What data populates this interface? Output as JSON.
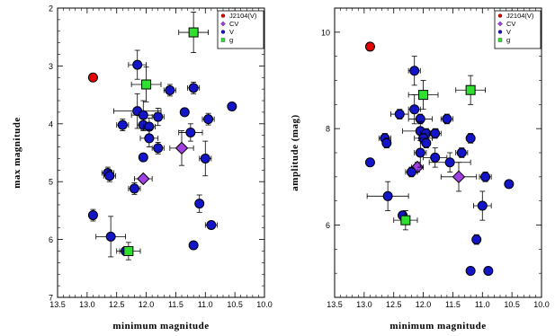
{
  "chart_data": [
    {
      "type": "scatter",
      "xlabel": "minimum magnitude",
      "ylabel": "max magnitude",
      "xlim": [
        13.5,
        10.0
      ],
      "ylim": [
        7,
        2
      ],
      "y_inverted": true,
      "xticks": [
        "13.5",
        "13.0",
        "12.5",
        "12.0",
        "11.5",
        "11.0",
        "10.5",
        "10.0"
      ],
      "yticks": [
        "2",
        "3",
        "4",
        "5",
        "6",
        "7"
      ],
      "legend_position": "top-right",
      "series": [
        {
          "name": "J2104(V)",
          "marker": "circle",
          "color": "#e00000",
          "points": [
            {
              "x": 12.9,
              "y": 3.2
            }
          ]
        },
        {
          "name": "CV",
          "marker": "diamond",
          "color": "#a040e0",
          "points": [
            {
              "x": 12.05,
              "y": 4.95,
              "xerr": 0.15,
              "yerr": 0.0
            },
            {
              "x": 11.4,
              "y": 4.42,
              "xerr": 0.2,
              "yerr": 0.3
            }
          ]
        },
        {
          "name": "V",
          "marker": "circle",
          "color": "#1414c8",
          "points": [
            {
              "x": 12.15,
              "y": 2.98,
              "xerr": 0.15,
              "yerr": 0.25
            },
            {
              "x": 11.6,
              "y": 3.42,
              "xerr": 0.1,
              "yerr": 0.1
            },
            {
              "x": 11.2,
              "y": 3.38,
              "xerr": 0.1,
              "yerr": 0.1
            },
            {
              "x": 10.55,
              "y": 3.7,
              "xerr": 0.05,
              "yerr": 0.05
            },
            {
              "x": 11.35,
              "y": 3.8,
              "xerr": 0.05,
              "yerr": 0.05
            },
            {
              "x": 12.15,
              "y": 3.78,
              "xerr": 0.4,
              "yerr": 0.3
            },
            {
              "x": 12.05,
              "y": 3.85,
              "xerr": 0.2,
              "yerr": 0.25
            },
            {
              "x": 11.8,
              "y": 3.88,
              "xerr": 0.1,
              "yerr": 0.15
            },
            {
              "x": 10.95,
              "y": 3.92,
              "xerr": 0.1,
              "yerr": 0.1
            },
            {
              "x": 12.4,
              "y": 4.02,
              "xerr": 0.1,
              "yerr": 0.1
            },
            {
              "x": 12.05,
              "y": 4.02,
              "xerr": 0.1,
              "yerr": 0.1
            },
            {
              "x": 11.95,
              "y": 4.05,
              "xerr": 0.1,
              "yerr": 0.15
            },
            {
              "x": 11.25,
              "y": 4.15,
              "xerr": 0.2,
              "yerr": 0.15
            },
            {
              "x": 11.95,
              "y": 4.25,
              "xerr": 0.15,
              "yerr": 0.15
            },
            {
              "x": 11.8,
              "y": 4.42,
              "xerr": 0.1,
              "yerr": 0.1
            },
            {
              "x": 12.05,
              "y": 4.58,
              "xerr": 0.05,
              "yerr": 0.05
            },
            {
              "x": 11.0,
              "y": 4.6,
              "xerr": 0.1,
              "yerr": 0.3
            },
            {
              "x": 12.65,
              "y": 4.85,
              "xerr": 0.1,
              "yerr": 0.1
            },
            {
              "x": 12.62,
              "y": 4.9,
              "xerr": 0.1,
              "yerr": 0.1
            },
            {
              "x": 12.2,
              "y": 5.12,
              "xerr": 0.1,
              "yerr": 0.1
            },
            {
              "x": 11.1,
              "y": 5.38,
              "xerr": 0.05,
              "yerr": 0.15
            },
            {
              "x": 12.9,
              "y": 5.58,
              "xerr": 0.05,
              "yerr": 0.1
            },
            {
              "x": 10.9,
              "y": 5.75,
              "xerr": 0.1,
              "yerr": 0.05
            },
            {
              "x": 12.6,
              "y": 5.95,
              "xerr": 0.25,
              "yerr": 0.35
            },
            {
              "x": 11.2,
              "y": 6.1,
              "xerr": 0.05,
              "yerr": 0.05
            },
            {
              "x": 12.35,
              "y": 6.2,
              "xerr": 0.1,
              "yerr": 0.05
            }
          ]
        },
        {
          "name": "g",
          "marker": "square",
          "color": "#30e030",
          "points": [
            {
              "x": 11.2,
              "y": 2.42,
              "xerr": 0.25,
              "yerr": 0.35
            },
            {
              "x": 12.0,
              "y": 3.32,
              "xerr": 0.25,
              "yerr": 0.3
            },
            {
              "x": 12.3,
              "y": 6.2,
              "xerr": 0.2,
              "yerr": 0.15
            }
          ]
        }
      ]
    },
    {
      "type": "scatter",
      "xlabel": "minimum magnitude",
      "ylabel": "amplitude (mag)",
      "xlim": [
        13.5,
        10.0
      ],
      "ylim": [
        4.5,
        10.5
      ],
      "yticks_major": [
        6,
        8,
        10
      ],
      "xticks": [
        "13.5",
        "13.0",
        "12.5",
        "12.0",
        "11.5",
        "11.0",
        "10.5",
        "10.0"
      ],
      "yticks": [
        "6",
        "8",
        "10"
      ],
      "legend_position": "top-right",
      "series": [
        {
          "name": "J2104(V)",
          "marker": "circle",
          "color": "#e00000",
          "points": [
            {
              "x": 12.9,
              "y": 9.7
            }
          ]
        },
        {
          "name": "CV",
          "marker": "diamond",
          "color": "#a040e0",
          "points": [
            {
              "x": 12.1,
              "y": 7.2,
              "xerr": 0.1,
              "yerr": 0.1
            },
            {
              "x": 11.4,
              "y": 7.0,
              "xerr": 0.3,
              "yerr": 0.3
            }
          ]
        },
        {
          "name": "V",
          "marker": "circle",
          "color": "#1414c8",
          "points": [
            {
              "x": 12.15,
              "y": 9.2,
              "xerr": 0.1,
              "yerr": 0.3
            },
            {
              "x": 12.15,
              "y": 8.4,
              "xerr": 0.1,
              "yerr": 0.3
            },
            {
              "x": 12.4,
              "y": 8.3,
              "xerr": 0.15,
              "yerr": 0.1
            },
            {
              "x": 12.05,
              "y": 8.2,
              "xerr": 0.2,
              "yerr": 0.1
            },
            {
              "x": 11.6,
              "y": 8.2,
              "xerr": 0.1,
              "yerr": 0.1
            },
            {
              "x": 12.05,
              "y": 7.95,
              "xerr": 0.3,
              "yerr": 0.2
            },
            {
              "x": 11.95,
              "y": 7.9,
              "xerr": 0.1,
              "yerr": 0.1
            },
            {
              "x": 11.8,
              "y": 7.9,
              "xerr": 0.1,
              "yerr": 0.1
            },
            {
              "x": 12.0,
              "y": 7.8,
              "xerr": 0.15,
              "yerr": 0.1
            },
            {
              "x": 11.2,
              "y": 7.8,
              "xerr": 0.05,
              "yerr": 0.1
            },
            {
              "x": 12.65,
              "y": 7.8,
              "xerr": 0.1,
              "yerr": 0.1
            },
            {
              "x": 12.62,
              "y": 7.7,
              "xerr": 0.05,
              "yerr": 0.1
            },
            {
              "x": 11.95,
              "y": 7.7,
              "xerr": 0.05,
              "yerr": 0.1
            },
            {
              "x": 12.05,
              "y": 7.5,
              "xerr": 0.1,
              "yerr": 0.3
            },
            {
              "x": 11.35,
              "y": 7.5,
              "xerr": 0.1,
              "yerr": 0.1
            },
            {
              "x": 11.8,
              "y": 7.4,
              "xerr": 0.2,
              "yerr": 0.2
            },
            {
              "x": 11.55,
              "y": 7.3,
              "xerr": 0.35,
              "yerr": 0.2
            },
            {
              "x": 12.9,
              "y": 7.3,
              "xerr": 0.05,
              "yerr": 0.05
            },
            {
              "x": 12.2,
              "y": 7.1,
              "xerr": 0.1,
              "yerr": 0.1
            },
            {
              "x": 10.95,
              "y": 7.0,
              "xerr": 0.1,
              "yerr": 0.1
            },
            {
              "x": 10.55,
              "y": 6.85,
              "xerr": 0.05,
              "yerr": 0.05
            },
            {
              "x": 12.6,
              "y": 6.6,
              "xerr": 0.35,
              "yerr": 0.3
            },
            {
              "x": 11.0,
              "y": 6.4,
              "xerr": 0.15,
              "yerr": 0.3
            },
            {
              "x": 12.35,
              "y": 6.2,
              "xerr": 0.05,
              "yerr": 0.05
            },
            {
              "x": 11.1,
              "y": 5.7,
              "xerr": 0.05,
              "yerr": 0.1
            },
            {
              "x": 11.2,
              "y": 5.05,
              "xerr": 0.02,
              "yerr": 0.02
            },
            {
              "x": 10.9,
              "y": 5.05,
              "xerr": 0.05,
              "yerr": 0.02
            }
          ]
        },
        {
          "name": "g",
          "marker": "square",
          "color": "#30e030",
          "points": [
            {
              "x": 11.2,
              "y": 8.8,
              "xerr": 0.25,
              "yerr": 0.3
            },
            {
              "x": 12.0,
              "y": 8.7,
              "xerr": 0.25,
              "yerr": 0.3
            },
            {
              "x": 12.3,
              "y": 6.1,
              "xerr": 0.2,
              "yerr": 0.2
            }
          ]
        }
      ]
    }
  ]
}
